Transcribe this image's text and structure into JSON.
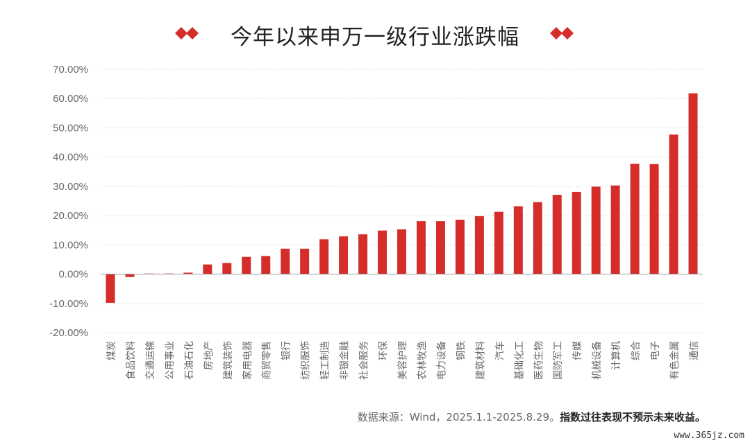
{
  "title": "今年以来申万一级行业涨跌幅",
  "colors": {
    "bar": "#d42d2a",
    "grid": "#e0e0e0",
    "axis": "#999999",
    "text": "#666666"
  },
  "footnote": {
    "source": "数据来源：Wind，2025.1.1-2025.8.29。",
    "disclaimer": "指数过往表现不预示未来收益。"
  },
  "watermark": "www.365jz.com",
  "chart_data": {
    "type": "bar",
    "title": "今年以来申万一级行业涨跌幅",
    "xlabel": "",
    "ylabel": "",
    "ylim": [
      -20,
      70
    ],
    "yticks": [
      "70.00%",
      "60.00%",
      "50.00%",
      "40.00%",
      "30.00%",
      "20.00%",
      "10.00%",
      "0.00%",
      "-10.00%",
      "-20.00%"
    ],
    "grid": true,
    "categories": [
      "煤炭",
      "食品饮料",
      "交通运输",
      "公用事业",
      "石油石化",
      "房地产",
      "建筑装饰",
      "家用电器",
      "商贸零售",
      "银行",
      "纺织服饰",
      "轻工制造",
      "非银金融",
      "社会服务",
      "环保",
      "美容护理",
      "农林牧渔",
      "电力设备",
      "钢铁",
      "建筑材料",
      "汽车",
      "基础化工",
      "医药生物",
      "国防军工",
      "传媒",
      "机械设备",
      "计算机",
      "综合",
      "电子",
      "有色金属",
      "通信"
    ],
    "values": [
      -9.8,
      -1.0,
      0.2,
      0.2,
      0.5,
      3.3,
      3.8,
      5.9,
      6.2,
      8.7,
      8.7,
      11.9,
      12.9,
      13.6,
      14.9,
      15.3,
      18.1,
      18.1,
      18.6,
      19.8,
      21.3,
      23.2,
      24.6,
      27.1,
      28.1,
      29.9,
      30.3,
      37.7,
      37.6,
      47.7,
      61.8
    ]
  }
}
